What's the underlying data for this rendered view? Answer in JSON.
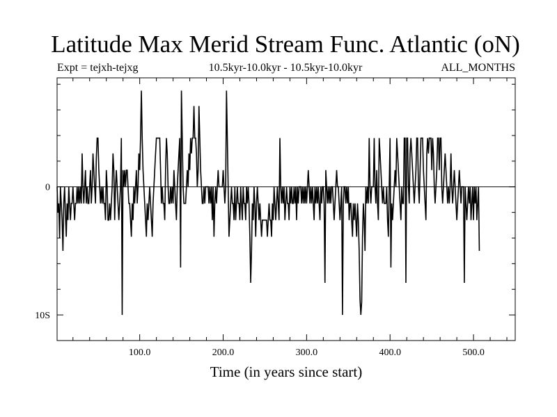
{
  "header": {
    "title": "Latitude Max Merid Stream Func. Atlantic (oN)",
    "experiment": "Expt = tejxh-tejxg",
    "period": "10.5kyr-10.0kyr - 10.5kyr-10.0kyr",
    "months": "ALL_MONTHS"
  },
  "chart_data": {
    "type": "line",
    "title": "Latitude Max Merid Stream Func. Atlantic (oN)",
    "xlabel": "Time (in years since start)",
    "ylabel": "",
    "xlim": [
      1,
      550
    ],
    "ylim": [
      -12,
      8.5
    ],
    "x_ticks": [
      100,
      200,
      300,
      400,
      500
    ],
    "x_tick_labels": [
      "100.0",
      "200.0",
      "300.0",
      "400.0",
      "500.0"
    ],
    "y_ticks": [
      0,
      -10
    ],
    "y_tick_labels": [
      "0",
      "10S"
    ],
    "series": [
      {
        "name": "tejxh-tejxg",
        "x_start": 1,
        "x_step": 1,
        "values": [
          0,
          -2,
          -1.3,
          -4,
          0,
          -1.3,
          -2.6,
          -5,
          -1.3,
          0,
          -2.2,
          -3.9,
          -1.3,
          -2.6,
          0,
          -1.3,
          -2.6,
          -1.3,
          -1.3,
          0,
          -1.3,
          -2.6,
          -1.3,
          -1.3,
          0,
          -1.3,
          0,
          -1.3,
          0,
          -1.3,
          2.6,
          0,
          -1.3,
          0,
          1.3,
          -1.3,
          0,
          -1.3,
          -1.3,
          0,
          1.3,
          -1.3,
          0,
          2.6,
          1.3,
          0,
          -1.3,
          2.2,
          3.8,
          3.8,
          1.3,
          0,
          -1.3,
          0,
          -1.3,
          0,
          -1.3,
          -1.3,
          -2.6,
          1.3,
          0,
          -2.6,
          -2.6,
          -1.3,
          -2.6,
          -1.3,
          0,
          2.6,
          1.3,
          -2.6,
          0,
          1.3,
          0,
          -1.3,
          -2.6,
          -1.3,
          0,
          3.8,
          -10,
          1.3,
          0,
          1.3,
          0,
          1.3,
          1.3,
          0,
          -1.3,
          -1.3,
          -2.6,
          -3.9,
          -1.3,
          -2.6,
          0,
          -1.3,
          0,
          1.3,
          -1.3,
          0,
          2.6,
          1.3,
          3.8,
          7.5,
          3.8,
          1.3,
          0,
          -1.3,
          -2.6,
          -3.9,
          -1.3,
          -2.6,
          -1.3,
          0,
          -1.3,
          -2.6,
          -3.9,
          -1.3,
          0,
          1.3,
          2.6,
          3.8,
          3.8,
          3.8,
          3.8,
          3.8,
          1.3,
          -1.3,
          0,
          -1.3,
          -1.3,
          -2.6,
          1.3,
          3.8,
          2.6,
          0,
          -1.3,
          -1.3,
          0,
          -1.3,
          0,
          -1.3,
          1.3,
          0,
          -1.3,
          -2.6,
          0,
          1.3,
          2.6,
          3.8,
          -6.3,
          7.5,
          3.8,
          0,
          -1.3,
          -1.3,
          -1.3,
          0,
          1.3,
          0,
          2.6,
          1.3,
          3.8,
          2.6,
          3.8,
          3.8,
          6.3,
          3.8,
          3.8,
          2.6,
          0,
          1.3,
          6.3,
          3.8,
          1.3,
          0,
          -1.3,
          -1.3,
          0,
          -1.3,
          0,
          0,
          0,
          0,
          -1.3,
          0,
          -1.3,
          0,
          -2.6,
          0,
          -3.9,
          -1.3,
          0,
          -1.3,
          0,
          1.3,
          0,
          0,
          0,
          0,
          0,
          1.3,
          0,
          -1.3,
          0,
          7.5,
          3.8,
          0,
          -3.9,
          -2.6,
          -1.3,
          0,
          -1.3,
          -1.3,
          -2.6,
          0,
          -2.6,
          -1.3,
          0,
          -1.3,
          -1.3,
          -2.6,
          0,
          -1.3,
          -2.6,
          0,
          -1.3,
          -1.3,
          -2.6,
          0,
          -1.3,
          0,
          -1.3,
          -3.9,
          -7.5,
          -5,
          -1.3,
          -2.6,
          0,
          -1.3,
          -3.9,
          -1.3,
          0,
          -1.3,
          -2.6,
          -1.3,
          -2.6,
          -3.9,
          -2.6,
          -2.6,
          -2.6,
          -2.6,
          -2.6,
          -2.6,
          -3.9,
          -2.6,
          -1.3,
          -2.6,
          -2.6,
          -3.9,
          -1.3,
          -2.6,
          0,
          -1.3,
          -2.6,
          -1.3,
          0,
          -1.3,
          -2.6,
          3.8,
          0,
          -1.3,
          0,
          -1.3,
          0,
          -2.6,
          -1.3,
          0,
          -1.3,
          -1.3,
          -2.6,
          0,
          -1.3,
          0,
          -1.3,
          -1.3,
          0,
          -1.3,
          0,
          -2.6,
          0,
          -1.3,
          0,
          0,
          0,
          -1.3,
          0,
          -1.3,
          0,
          -1.3,
          0,
          -1.3,
          0,
          1.3,
          0,
          -1.3,
          0,
          -1.3,
          0,
          -1.3,
          -2.6,
          0,
          -1.3,
          0,
          -1.3,
          0,
          -1.3,
          -2.6,
          0,
          -1.3,
          0,
          0,
          -1.3,
          -7.5,
          1.3,
          0,
          -1.3,
          0,
          -1.3,
          0,
          -1.3,
          0,
          0,
          -1.3,
          -2.6,
          -1.3,
          0,
          1.3,
          0,
          0,
          -1.3,
          -2.6,
          -1.3,
          0,
          -10,
          -1.3,
          0,
          0,
          -1.3,
          0,
          -1.3,
          0,
          -2.6,
          -1.3,
          -1.3,
          -2.6,
          -3.9,
          -1.3,
          -2.6,
          -1.3,
          -2.6,
          -3.9,
          -1.3,
          -2.6,
          -5,
          -8.8,
          -10,
          -9,
          -3.9,
          -1.3,
          -2.6,
          -5,
          0,
          -1.3,
          0,
          -1.3,
          3.8,
          0,
          -1.3,
          0,
          0,
          0,
          3.8,
          0,
          -1.3,
          1.3,
          -1.3,
          -2.6,
          3.8,
          2.6,
          1.3,
          0,
          -1.3,
          0,
          -1.3,
          -1.3,
          -1.3,
          0,
          -2.6,
          -3.9,
          0,
          3.8,
          -6.3,
          -1.3,
          -2.6,
          -1.3,
          0,
          1.3,
          0,
          3.8,
          2.6,
          1.3,
          0,
          -1.3,
          -2.6,
          0,
          -1.3,
          -1.3,
          3.8,
          3.8,
          -7.5,
          3.8,
          3.8,
          0,
          -1.3,
          2.6,
          3.8,
          2.6,
          1.3,
          0,
          -1.3,
          0,
          1.3,
          3.8,
          3.8,
          0,
          -1.3,
          1.3,
          3.8,
          3.8,
          3.8,
          1.3,
          0,
          -1.3,
          -2.6,
          2.6,
          3.8,
          2.6,
          3.8,
          3.8,
          3.8,
          1.3,
          3.8,
          2.6,
          0,
          -1.3,
          0,
          1.3,
          3.8,
          3.8,
          1.3,
          3.8,
          3.8,
          0,
          -1.3,
          0,
          1.3,
          2.6,
          1.3,
          0,
          -1.3,
          0,
          -1.3,
          0,
          2.6,
          0,
          -1.3,
          0,
          1.3,
          0,
          -1.3,
          -2.6,
          -1.3,
          0,
          1.3,
          0,
          -1.3,
          0,
          0,
          0,
          -7.5,
          0,
          -1.3,
          -2.6,
          -1.3,
          0,
          -1.3,
          0,
          -2.6,
          -1.3,
          0,
          -2.6,
          0,
          -1.3,
          0,
          -2.6,
          -1.3,
          0,
          -5
        ]
      }
    ]
  }
}
